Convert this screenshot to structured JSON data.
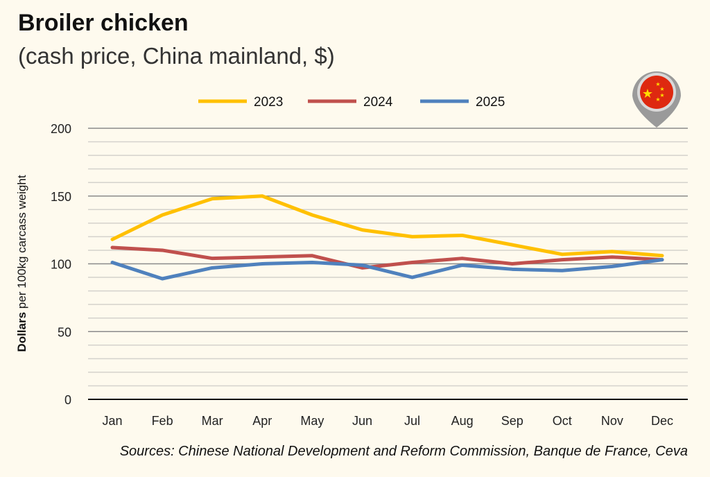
{
  "title": "Broiler chicken",
  "subtitle": "(cash price, China mainland, $)",
  "source": "Sources: Chinese National Development and Reform Commission, Banque de France, Ceva",
  "flag_icon": "china-flag-map-pin",
  "chart_data": {
    "type": "line",
    "title": "Broiler chicken",
    "subtitle": "(cash price, China mainland, $)",
    "ylabel_bold": "Dollars",
    "ylabel_rest": " per 100kg carcass weight",
    "xlabel": "",
    "ylim": [
      0,
      200
    ],
    "yticks": [
      0,
      50,
      100,
      150,
      200
    ],
    "minor_grid_step": 10,
    "grid": true,
    "legend_position": "top",
    "categories": [
      "Jan",
      "Feb",
      "Mar",
      "Apr",
      "May",
      "Jun",
      "Jul",
      "Aug",
      "Sep",
      "Oct",
      "Nov",
      "Dec"
    ],
    "series": [
      {
        "name": "2023",
        "color": "#ffc000",
        "values": [
          118,
          136,
          148,
          150,
          136,
          125,
          120,
          121,
          114,
          107,
          109,
          106
        ]
      },
      {
        "name": "2024",
        "color": "#c0504d",
        "values": [
          112,
          110,
          104,
          105,
          106,
          97,
          101,
          104,
          100,
          103,
          105,
          103
        ]
      },
      {
        "name": "2025",
        "color": "#4f81bd",
        "values": [
          101,
          89,
          97,
          100,
          101,
          99,
          90,
          99,
          96,
          95,
          98,
          103
        ]
      }
    ]
  }
}
